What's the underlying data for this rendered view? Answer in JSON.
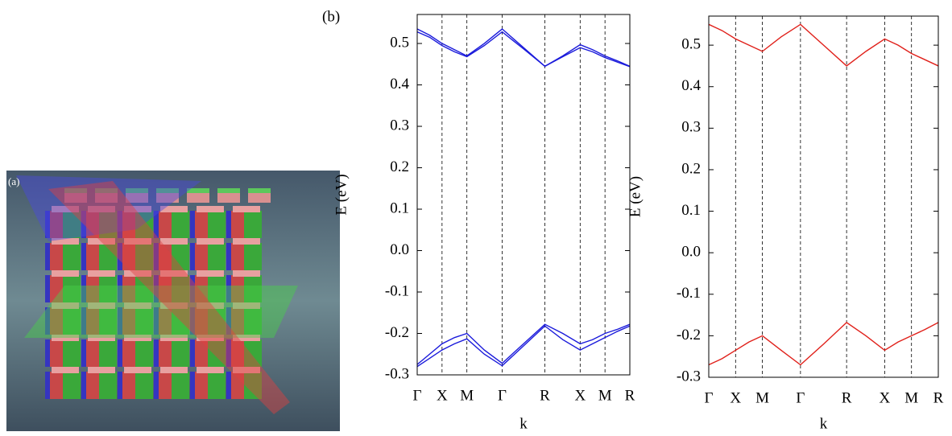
{
  "figure": {
    "panel_a_label": "(a)",
    "panel_b_label": "(b)"
  },
  "chart_data": [
    {
      "type": "line",
      "ylabel": "E (eV)",
      "xlabel": "k",
      "x": [
        0,
        0.25,
        0.5,
        0.75,
        1.0,
        1.35,
        1.71,
        2.14,
        2.57,
        2.93,
        3.28,
        3.53,
        3.78,
        4.03,
        4.28
      ],
      "series": [
        {
          "color": "#1a1adb",
          "values": [
            0.535,
            0.52,
            0.5,
            0.485,
            0.47,
            0.5,
            0.535,
            0.49,
            0.445,
            0.47,
            0.497,
            0.485,
            0.47,
            0.458,
            0.445
          ]
        },
        {
          "color": "#1a1adb",
          "values": [
            0.528,
            0.515,
            0.495,
            0.48,
            0.468,
            0.495,
            0.528,
            0.487,
            0.445,
            0.468,
            0.49,
            0.48,
            0.466,
            0.455,
            0.444
          ]
        },
        {
          "color": "#1a1adb",
          "values": [
            -0.275,
            -0.25,
            -0.225,
            -0.21,
            -0.2,
            -0.24,
            -0.272,
            -0.225,
            -0.178,
            -0.2,
            -0.225,
            -0.215,
            -0.2,
            -0.19,
            -0.178
          ]
        },
        {
          "color": "#1a1adb",
          "values": [
            -0.28,
            -0.26,
            -0.24,
            -0.225,
            -0.213,
            -0.25,
            -0.278,
            -0.23,
            -0.182,
            -0.215,
            -0.24,
            -0.225,
            -0.21,
            -0.195,
            -0.182
          ]
        }
      ],
      "xlim": [
        0,
        4.28
      ],
      "ylim": [
        -0.3,
        0.57
      ],
      "xticks": [
        {
          "value": 0,
          "label": "Γ"
        },
        {
          "value": 0.5,
          "label": "X"
        },
        {
          "value": 1.0,
          "label": "M"
        },
        {
          "value": 1.71,
          "label": "Γ"
        },
        {
          "value": 2.57,
          "label": "R"
        },
        {
          "value": 3.28,
          "label": "X"
        },
        {
          "value": 3.78,
          "label": "M"
        },
        {
          "value": 4.28,
          "label": "R"
        }
      ],
      "yticks": [
        -0.3,
        -0.2,
        -0.1,
        {
          "value": 0,
          "label": "0.0"
        },
        0.1,
        0.2,
        0.3,
        0.4,
        0.5
      ]
    },
    {
      "type": "line",
      "ylabel": "E (eV)",
      "xlabel": "k",
      "x": [
        0,
        0.25,
        0.5,
        0.75,
        1.0,
        1.35,
        1.71,
        2.14,
        2.57,
        2.93,
        3.28,
        3.53,
        3.78,
        4.03,
        4.28
      ],
      "series": [
        {
          "color": "#e0201a",
          "values": [
            0.55,
            0.535,
            0.515,
            0.5,
            0.485,
            0.52,
            0.55,
            0.5,
            0.45,
            0.485,
            0.515,
            0.5,
            0.48,
            0.465,
            0.45
          ]
        },
        {
          "color": "#e0201a",
          "values": [
            -0.27,
            -0.255,
            -0.235,
            -0.215,
            -0.2,
            -0.235,
            -0.27,
            -0.22,
            -0.168,
            -0.2,
            -0.235,
            -0.215,
            -0.2,
            -0.185,
            -0.168
          ]
        }
      ],
      "xlim": [
        0,
        4.28
      ],
      "ylim": [
        -0.3,
        0.57
      ],
      "xticks": [
        {
          "value": 0,
          "label": "Γ"
        },
        {
          "value": 0.5,
          "label": "X"
        },
        {
          "value": 1.0,
          "label": "M"
        },
        {
          "value": 1.71,
          "label": "Γ"
        },
        {
          "value": 2.57,
          "label": "R"
        },
        {
          "value": 3.28,
          "label": "X"
        },
        {
          "value": 3.78,
          "label": "M"
        },
        {
          "value": 4.28,
          "label": "R"
        }
      ],
      "yticks": [
        -0.3,
        -0.2,
        -0.1,
        {
          "value": 0,
          "label": "0.0"
        },
        0.1,
        0.2,
        0.3,
        0.4,
        0.5
      ]
    }
  ]
}
